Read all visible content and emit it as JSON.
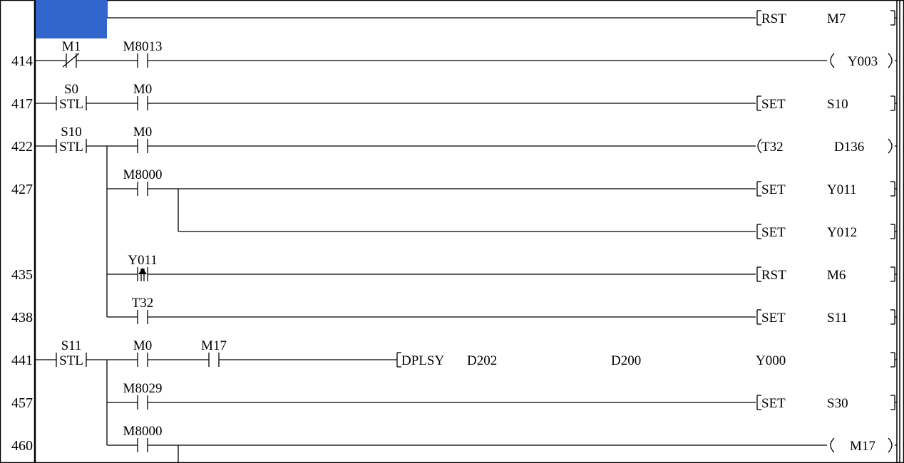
{
  "colors": {
    "cursor": "#3366cc",
    "line": "#000000",
    "background": "#ffffff"
  },
  "rungs": [
    {
      "step": "",
      "contacts": [],
      "output": {
        "kind": "instr",
        "op": "RST",
        "args": [
          "M7"
        ]
      }
    },
    {
      "step": "414",
      "contacts": [
        {
          "type": "nc",
          "label": "M1"
        },
        {
          "type": "no",
          "label": "M8013"
        }
      ],
      "output": {
        "kind": "coil",
        "args": [
          "Y003"
        ]
      }
    },
    {
      "step": "417",
      "contacts": [
        {
          "type": "stl",
          "label": "S0",
          "text": "STL"
        },
        {
          "type": "no",
          "label": "M0"
        }
      ],
      "output": {
        "kind": "instr",
        "op": "SET",
        "args": [
          "S10"
        ]
      }
    },
    {
      "step": "422",
      "contacts": [
        {
          "type": "stl",
          "label": "S10",
          "text": "STL"
        },
        {
          "type": "no",
          "label": "M0"
        }
      ],
      "output": {
        "kind": "timer",
        "op": "T32",
        "args": [
          "D136"
        ]
      }
    },
    {
      "step": "427",
      "contacts": [
        {
          "type": "no",
          "label": "M8000"
        }
      ],
      "output": {
        "kind": "instr",
        "op": "SET",
        "args": [
          "Y011"
        ]
      }
    },
    {
      "step": "",
      "contacts": [],
      "output": {
        "kind": "instr",
        "op": "SET",
        "args": [
          "Y012"
        ]
      }
    },
    {
      "step": "435",
      "contacts": [
        {
          "type": "rise",
          "label": "Y011"
        }
      ],
      "output": {
        "kind": "instr",
        "op": "RST",
        "args": [
          "M6"
        ]
      }
    },
    {
      "step": "438",
      "contacts": [
        {
          "type": "no",
          "label": "T32"
        }
      ],
      "output": {
        "kind": "instr",
        "op": "SET",
        "args": [
          "S11"
        ]
      }
    },
    {
      "step": "441",
      "contacts": [
        {
          "type": "stl",
          "label": "S11",
          "text": "STL"
        },
        {
          "type": "no",
          "label": "M0"
        },
        {
          "type": "no",
          "label": "M17"
        }
      ],
      "output": {
        "kind": "func",
        "op": "DPLSY",
        "args": [
          "D202",
          "D200",
          "Y000"
        ]
      }
    },
    {
      "step": "457",
      "contacts": [
        {
          "type": "no",
          "label": "M8029"
        }
      ],
      "output": {
        "kind": "instr",
        "op": "SET",
        "args": [
          "S30"
        ]
      }
    },
    {
      "step": "460",
      "contacts": [
        {
          "type": "no",
          "label": "M8000"
        }
      ],
      "output": {
        "kind": "coil",
        "args": [
          "M17"
        ]
      }
    }
  ]
}
